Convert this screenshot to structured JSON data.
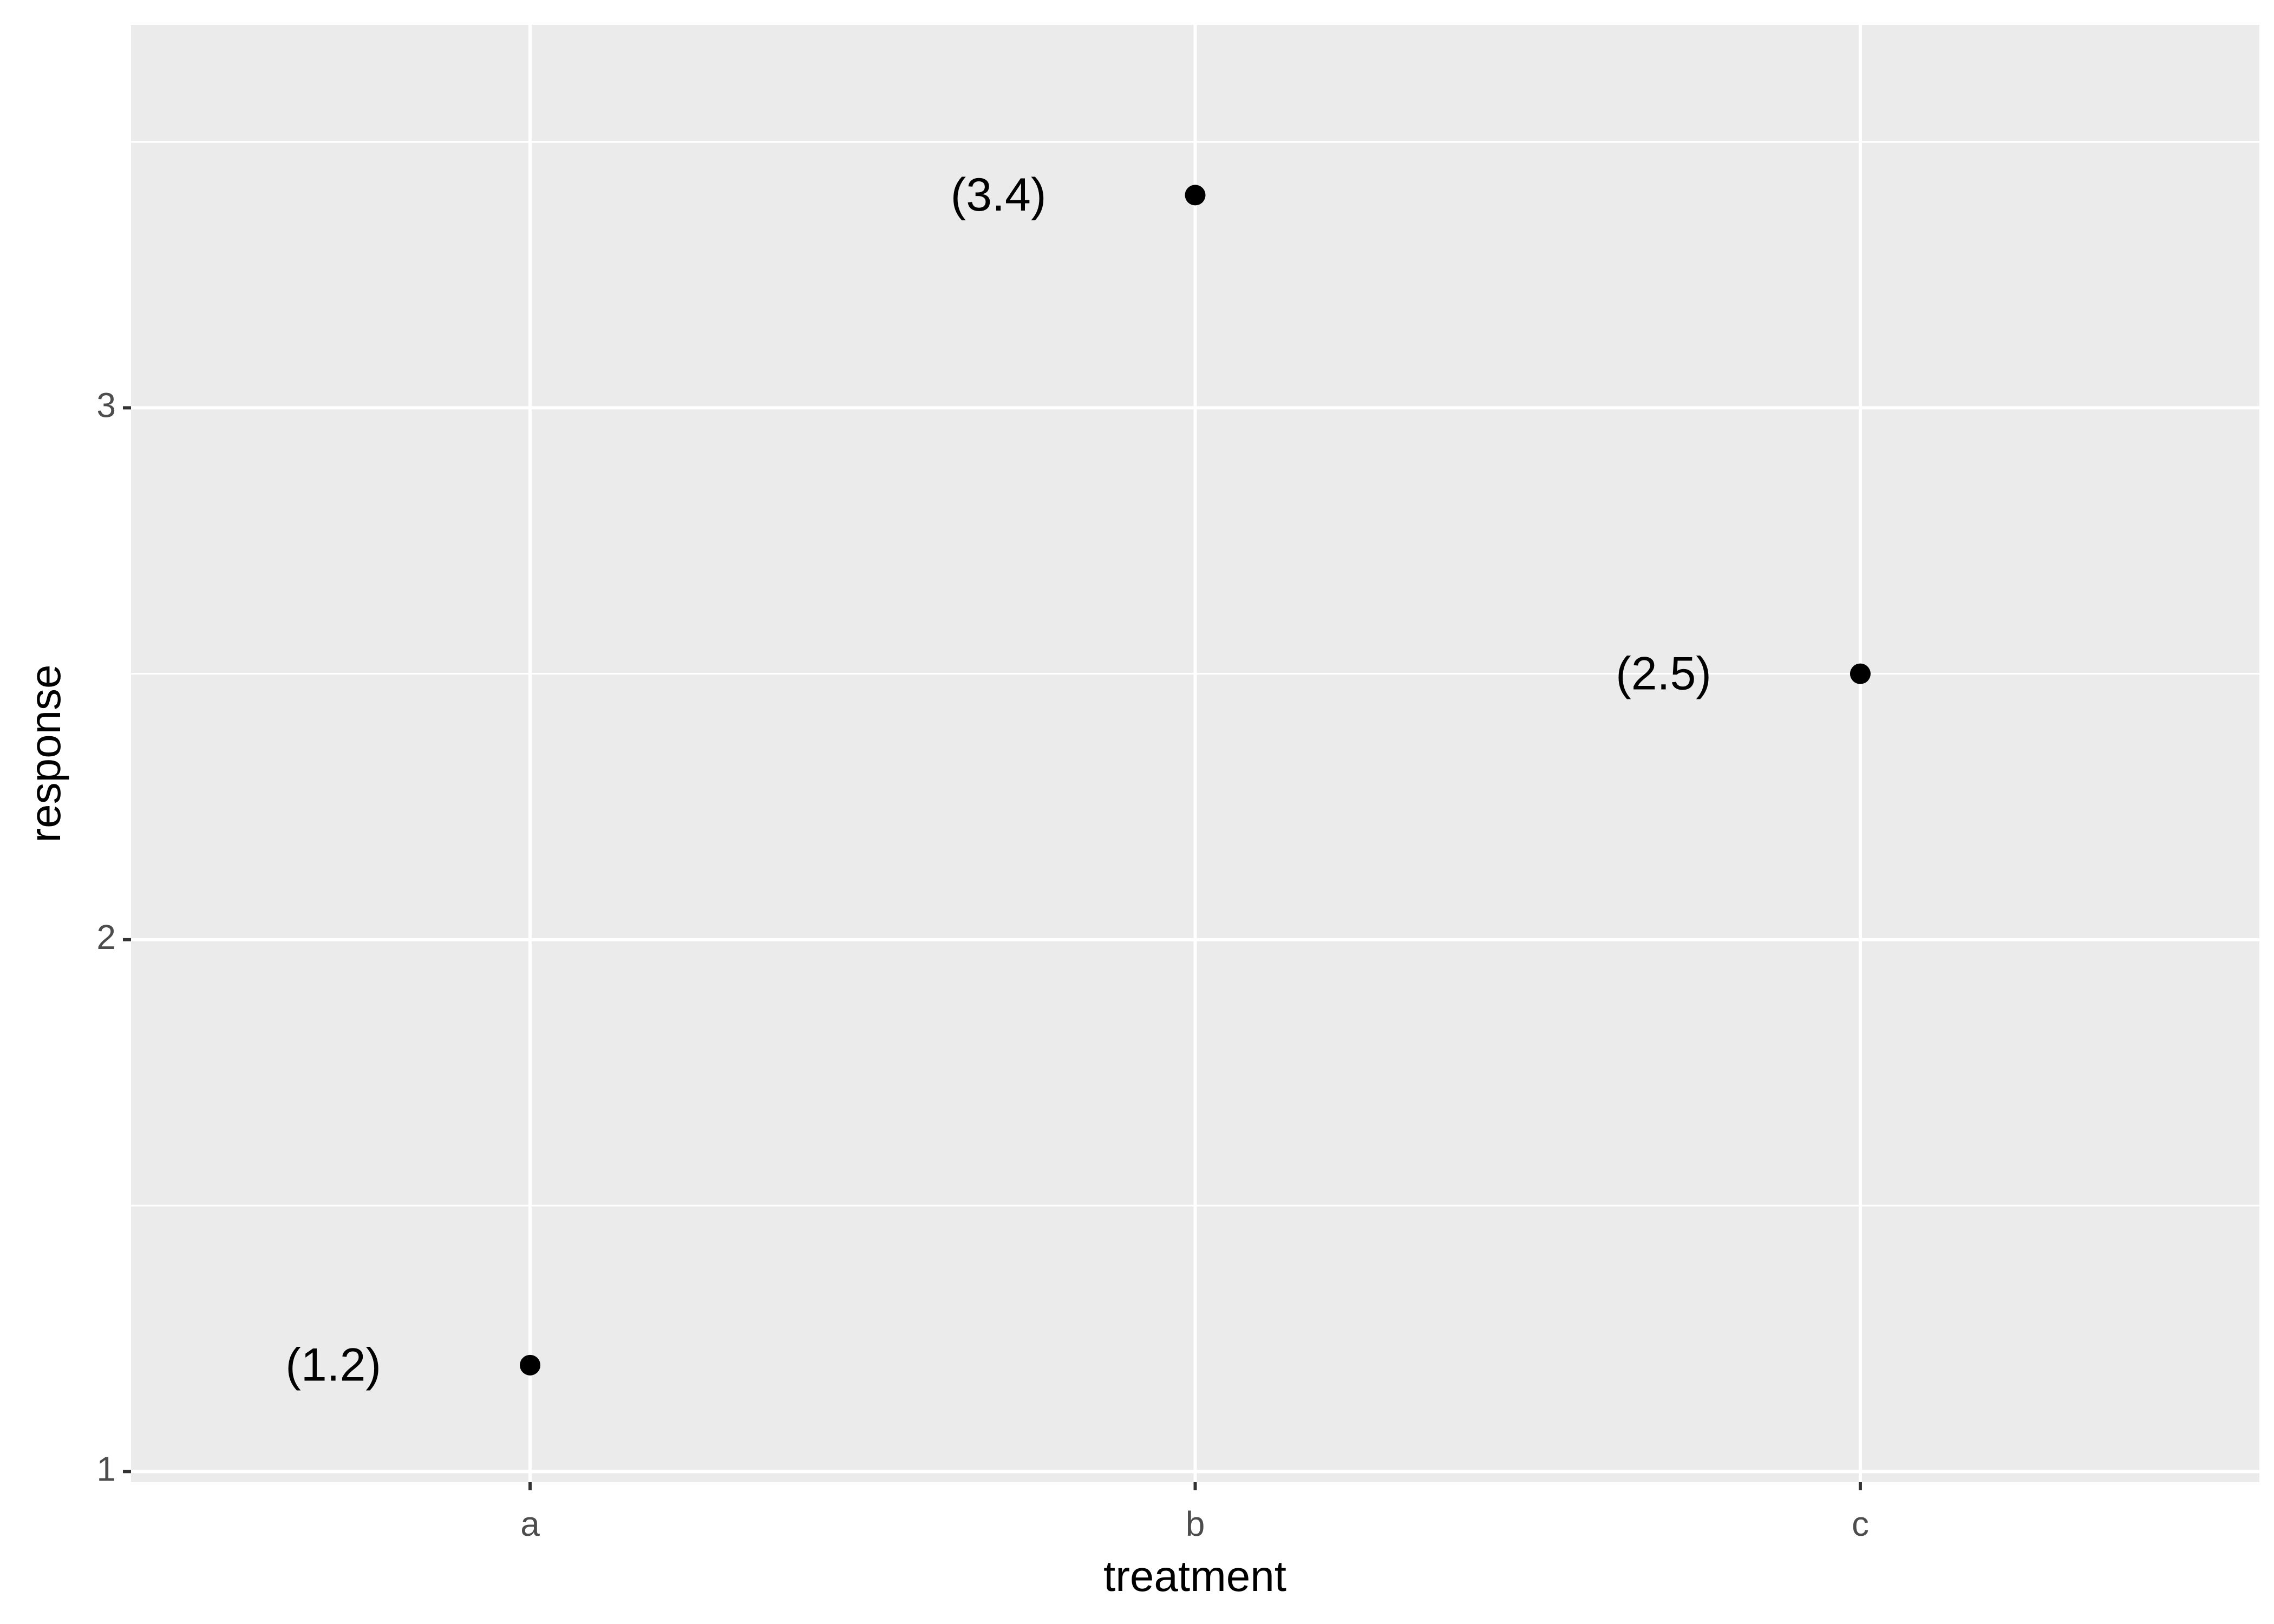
{
  "chart_data": {
    "type": "scatter",
    "x_label": "treatment",
    "y_label": "response",
    "categories": [
      "a",
      "b",
      "c"
    ],
    "values": [
      1.2,
      3.4,
      2.5
    ],
    "value_labels": [
      "(1.2)",
      "(3.4)",
      "(2.5)"
    ],
    "color": "#000000",
    "ylim": [
      0.98,
      3.72
    ],
    "yticks": [
      1,
      2,
      3
    ],
    "grid": true
  }
}
